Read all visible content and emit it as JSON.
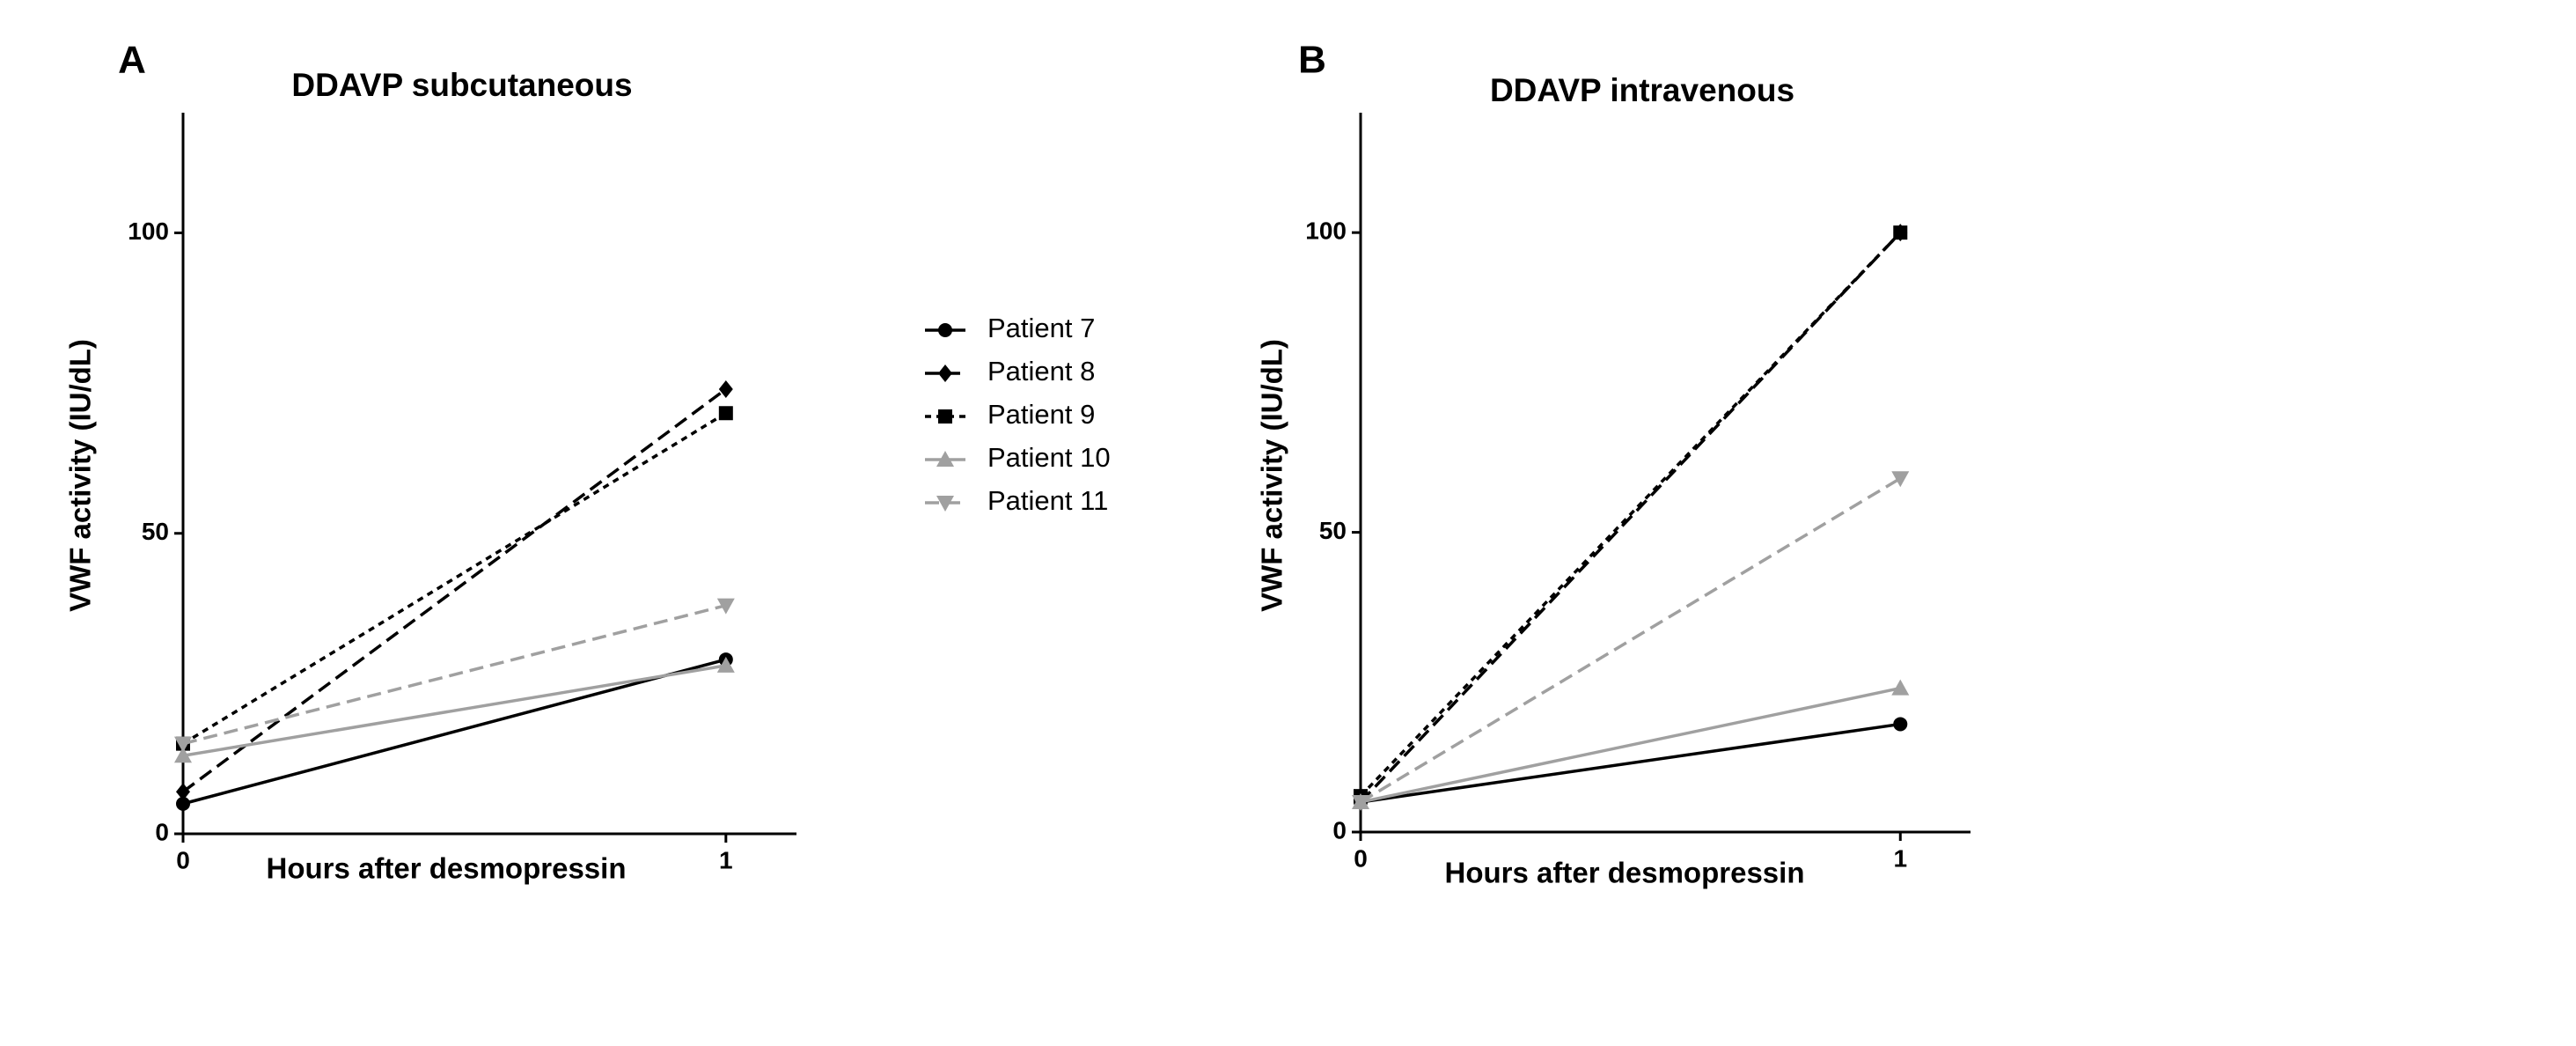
{
  "chart_data": [
    {
      "type": "line",
      "panel": "A",
      "title": "DDAVP subcutaneous",
      "x_label": "Hours after desmopressin",
      "y_label": "VWF activity (IU/dL)",
      "x": [
        0,
        1
      ],
      "xlim": [
        0,
        1.13
      ],
      "xticks": [
        0,
        1
      ],
      "ylim": [
        0,
        120
      ],
      "yticks": [
        0,
        50,
        100
      ],
      "legend": "right",
      "series": [
        {
          "name": "Patient 7",
          "color": "#000000",
          "dash": "solid",
          "marker": "circle",
          "values": [
            5,
            29
          ]
        },
        {
          "name": "Patient 8",
          "color": "#000000",
          "dash": "dashed",
          "marker": "diamond",
          "values": [
            7,
            74
          ]
        },
        {
          "name": "Patient 9",
          "color": "#000000",
          "dash": "dotted",
          "marker": "square",
          "values": [
            15,
            70
          ]
        },
        {
          "name": "Patient 10",
          "color": "#a0a0a0",
          "dash": "solid",
          "marker": "triangle-up",
          "values": [
            13,
            28
          ]
        },
        {
          "name": "Patient 11",
          "color": "#a0a0a0",
          "dash": "dashed",
          "marker": "triangle-down",
          "values": [
            15,
            38
          ]
        }
      ]
    },
    {
      "type": "line",
      "panel": "B",
      "title": "DDAVP intravenous",
      "x_label": "Hours after desmopressin",
      "y_label": "VWF activity (IU/dL)",
      "x": [
        0,
        1
      ],
      "xlim": [
        0,
        1.13
      ],
      "xticks": [
        0,
        1
      ],
      "ylim": [
        0,
        120
      ],
      "yticks": [
        0,
        50,
        100
      ],
      "series": [
        {
          "color": "#000000",
          "dash": "solid",
          "marker": "circle",
          "values": [
            5,
            18
          ]
        },
        {
          "color": "#000000",
          "dash": "dashed",
          "marker": "diamond",
          "values": [
            5,
            100
          ]
        },
        {
          "color": "#000000",
          "dash": "dotted",
          "marker": "square",
          "values": [
            6,
            100
          ]
        },
        {
          "color": "#a0a0a0",
          "dash": "solid",
          "marker": "triangle-up",
          "values": [
            5,
            24
          ]
        },
        {
          "color": "#a0a0a0",
          "dash": "dashed",
          "marker": "triangle-down",
          "values": [
            5,
            59
          ]
        }
      ]
    }
  ]
}
